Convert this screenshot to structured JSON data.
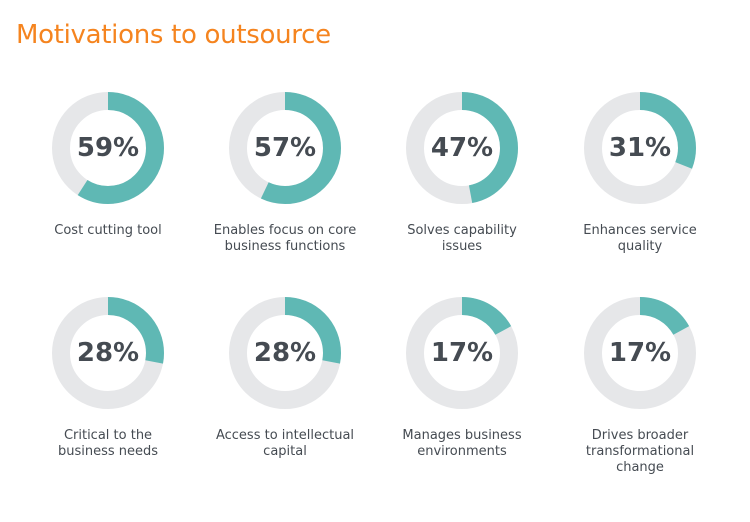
{
  "title": "Motivations to outsource",
  "colors": {
    "title": "#f5841f",
    "filled": "#5fb8b4",
    "track": "#e6e7e9",
    "text": "#454b52"
  },
  "items": [
    {
      "pct_label": "59%",
      "value": 59,
      "label": "Cost cutting tool"
    },
    {
      "pct_label": "57%",
      "value": 57,
      "label": "Enables focus on core business functions"
    },
    {
      "pct_label": "47%",
      "value": 47,
      "label": "Solves capability issues"
    },
    {
      "pct_label": "31%",
      "value": 31,
      "label": "Enhances service quality"
    },
    {
      "pct_label": "28%",
      "value": 28,
      "label": "Critical to the business needs"
    },
    {
      "pct_label": "28%",
      "value": 28,
      "label": "Access to intellectual capital"
    },
    {
      "pct_label": "17%",
      "value": 17,
      "label": "Manages business environments"
    },
    {
      "pct_label": "17%",
      "value": 17,
      "label": "Drives broader transformational change"
    }
  ],
  "chart_data": {
    "type": "pie",
    "subtype": "donut-grid",
    "title": "Motivations to outsource",
    "categories": [
      "Cost cutting tool",
      "Enables focus on core business functions",
      "Solves capability issues",
      "Enhances service quality",
      "Critical to the business needs",
      "Access to intellectual capital",
      "Manages business environments",
      "Drives broader transformational change"
    ],
    "values": [
      59,
      57,
      47,
      31,
      28,
      28,
      17,
      17
    ],
    "unit": "%",
    "layout": {
      "rows": 2,
      "cols": 4
    },
    "legend": false
  }
}
